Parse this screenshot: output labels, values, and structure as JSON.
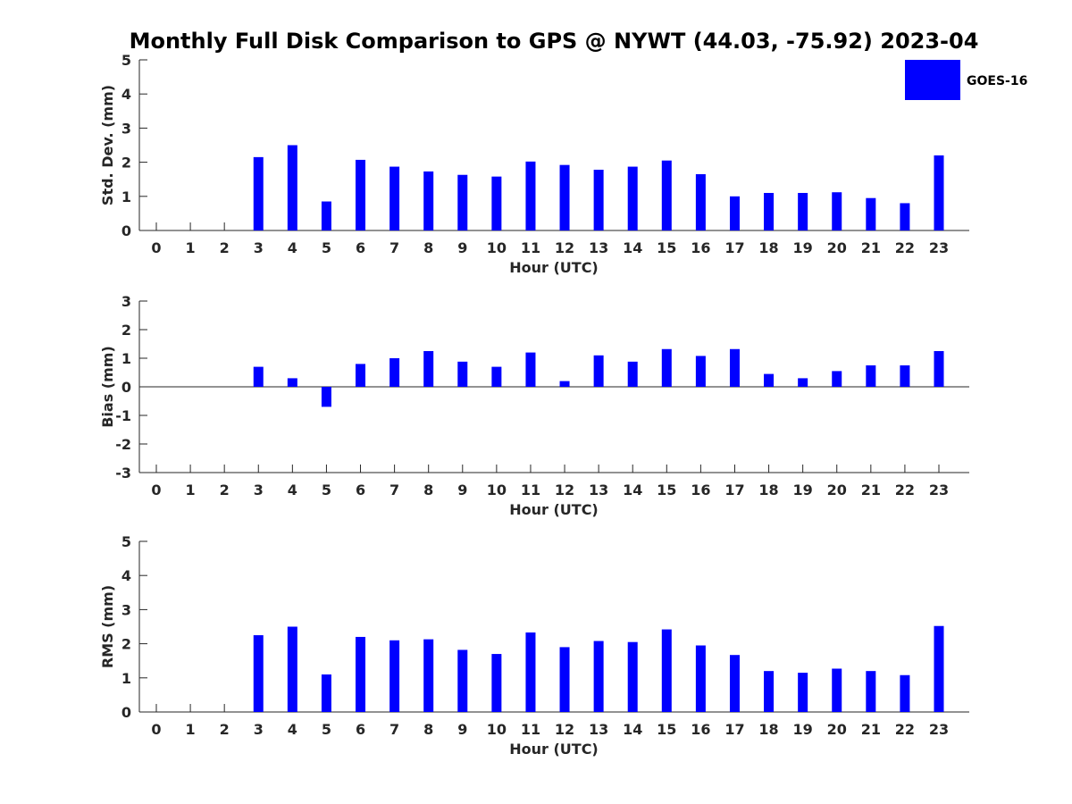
{
  "figure": {
    "title": "Monthly Full Disk Comparison to GPS @ NYWT (44.03, -75.92) 2023-04"
  },
  "legend": {
    "label": "GOES-16",
    "placement": "top-right",
    "color": "#0000ff"
  },
  "colors": {
    "bar": "#0000ff",
    "axis": "#262626"
  },
  "chart_data": [
    {
      "type": "bar",
      "title": "",
      "xlabel": "Hour (UTC)",
      "ylabel": "Std. Dev. (mm)",
      "categories": [
        "0",
        "1",
        "2",
        "3",
        "4",
        "5",
        "6",
        "7",
        "8",
        "9",
        "10",
        "11",
        "12",
        "13",
        "14",
        "15",
        "16",
        "17",
        "18",
        "19",
        "20",
        "21",
        "22",
        "23"
      ],
      "series": [
        {
          "name": "GOES-16",
          "values": [
            null,
            null,
            null,
            2.15,
            2.5,
            0.85,
            2.07,
            1.87,
            1.73,
            1.63,
            1.58,
            2.02,
            1.92,
            1.78,
            1.87,
            2.05,
            1.65,
            1.0,
            1.1,
            1.1,
            1.12,
            0.95,
            0.8,
            2.2
          ]
        }
      ],
      "ylim": [
        0,
        5
      ],
      "yticks": [
        "0",
        "1",
        "2",
        "3",
        "4",
        "5"
      ],
      "grid": false
    },
    {
      "type": "bar",
      "title": "",
      "xlabel": "Hour (UTC)",
      "ylabel": "Bias (mm)",
      "categories": [
        "0",
        "1",
        "2",
        "3",
        "4",
        "5",
        "6",
        "7",
        "8",
        "9",
        "10",
        "11",
        "12",
        "13",
        "14",
        "15",
        "16",
        "17",
        "18",
        "19",
        "20",
        "21",
        "22",
        "23"
      ],
      "series": [
        {
          "name": "GOES-16",
          "values": [
            null,
            null,
            null,
            0.7,
            0.3,
            -0.7,
            0.8,
            1.0,
            1.25,
            0.88,
            0.7,
            1.2,
            0.2,
            1.1,
            0.88,
            1.32,
            1.08,
            1.32,
            0.45,
            0.3,
            0.55,
            0.75,
            0.75,
            1.25
          ]
        }
      ],
      "ylim": [
        -3,
        3
      ],
      "yticks": [
        "-3",
        "-2",
        "-1",
        "0",
        "1",
        "2",
        "3"
      ],
      "grid": false
    },
    {
      "type": "bar",
      "title": "",
      "xlabel": "Hour (UTC)",
      "ylabel": "RMS (mm)",
      "categories": [
        "0",
        "1",
        "2",
        "3",
        "4",
        "5",
        "6",
        "7",
        "8",
        "9",
        "10",
        "11",
        "12",
        "13",
        "14",
        "15",
        "16",
        "17",
        "18",
        "19",
        "20",
        "21",
        "22",
        "23"
      ],
      "series": [
        {
          "name": "GOES-16",
          "values": [
            null,
            null,
            null,
            2.25,
            2.5,
            1.1,
            2.2,
            2.1,
            2.13,
            1.82,
            1.7,
            2.33,
            1.9,
            2.08,
            2.05,
            2.42,
            1.95,
            1.67,
            1.2,
            1.15,
            1.27,
            1.2,
            1.08,
            2.52
          ]
        }
      ],
      "ylim": [
        0,
        5
      ],
      "yticks": [
        "0",
        "1",
        "2",
        "3",
        "4",
        "5"
      ],
      "grid": false
    }
  ]
}
